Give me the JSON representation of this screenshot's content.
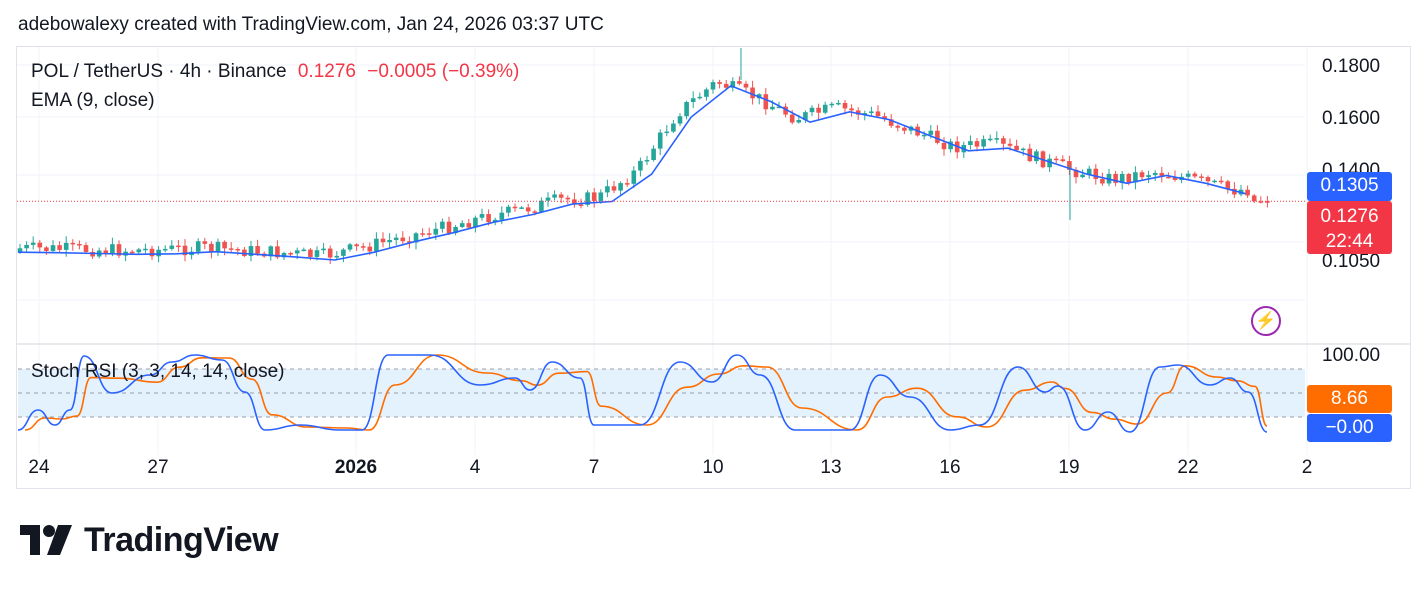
{
  "header": {
    "text": "adebowalexy created with TradingView.com, Jan 24, 2026 03:37 UTC"
  },
  "legend": {
    "symbol": "POL / TetherUS · 4h · Binance",
    "price": "0.1276",
    "change": "−0.0005 (−0.39%)",
    "ema_label": "EMA (9, close)",
    "stoch_label": "Stoch RSI (3, 3, 14, 14, close)"
  },
  "badges": {
    "ema_value": "0.1305",
    "last_price": "0.1276",
    "countdown": "22:44",
    "stoch_k": "8.66",
    "stoch_d": "−0.00"
  },
  "brand": {
    "name": "TradingView"
  },
  "colors": {
    "up": "#26a69a",
    "down": "#ef5350",
    "ema": "#2962ff",
    "stoch_k": "#2962ff",
    "stoch_d": "#ff6d00",
    "stoch_band": "#e3f2fd",
    "last_price_line": "#f23645"
  },
  "chart_data": [
    {
      "type": "candlestick",
      "y_axis_ticks": [
        "0.1800",
        "0.1600",
        "0.1400",
        "0.1050"
      ],
      "x_axis_ticks": [
        "24",
        "27",
        "2026",
        "4",
        "7",
        "10",
        "13",
        "16",
        "19",
        "22",
        "2"
      ],
      "ema_close_points": [
        [
          "Dec 24",
          0.108
        ],
        [
          "Dec 25",
          0.1078
        ],
        [
          "Dec 26",
          0.1075
        ],
        [
          "Dec 27",
          0.1072
        ],
        [
          "Dec 28",
          0.1074
        ],
        [
          "Dec 29",
          0.1082
        ],
        [
          "Dec 30",
          0.1072
        ],
        [
          "Dec 31",
          0.1062
        ],
        [
          "Jan 1",
          0.105
        ],
        [
          "Jan 2",
          0.108
        ],
        [
          "Jan 3",
          0.112
        ],
        [
          "Jan 4",
          0.1155
        ],
        [
          "Jan 5",
          0.1195
        ],
        [
          "Jan 6",
          0.1225
        ],
        [
          "Jan 7",
          0.1265
        ],
        [
          "Jan 8",
          0.1275
        ],
        [
          "Jan 9",
          0.138
        ],
        [
          "Jan 10",
          0.16
        ],
        [
          "Jan 11",
          0.172
        ],
        [
          "Jan 12",
          0.166
        ],
        [
          "Jan 13",
          0.158
        ],
        [
          "Jan 14",
          0.162
        ],
        [
          "Jan 15",
          0.159
        ],
        [
          "Jan 16",
          0.153
        ],
        [
          "Jan 17",
          0.147
        ],
        [
          "Jan 18",
          0.148
        ],
        [
          "Jan 19",
          0.143
        ],
        [
          "Jan 20",
          0.138
        ],
        [
          "Jan 21",
          0.1345
        ],
        [
          "Jan 22",
          0.1375
        ],
        [
          "Jan 23",
          0.1345
        ],
        [
          "Jan 24",
          0.1305
        ]
      ],
      "last_price": 0.1276,
      "ema_last": 0.1305
    },
    {
      "type": "line",
      "name": "Stoch RSI (3, 3, 14, 14, close)",
      "y_axis_ticks": [
        "100.00"
      ],
      "band": [
        20,
        80
      ],
      "k_last": 8.66,
      "d_last": -0.0
    }
  ]
}
